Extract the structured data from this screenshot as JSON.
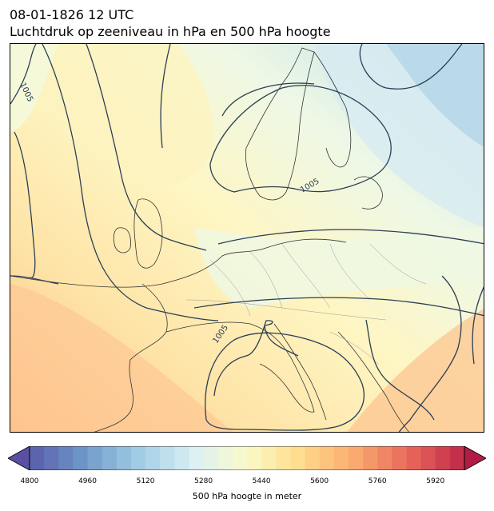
{
  "header": {
    "title_line1": "08-01-1826 12 UTC",
    "title_line2": "Luchtdruk op zeeniveau in hPa en 500 hPa hoogte"
  },
  "map": {
    "region": "Europe",
    "isobar_labels": [
      "1005",
      "1005",
      "1005"
    ],
    "isobar_color": "#2c3e55",
    "coastline_color": "#333333",
    "border_color": "#999999"
  },
  "colorbar": {
    "label": "500 hPa hoogte in meter",
    "min": 4800,
    "max": 6000,
    "step": 40,
    "ticks": [
      "4800",
      "4960",
      "5120",
      "5280",
      "5440",
      "5600",
      "5760",
      "5920"
    ],
    "colormap": "RdYlBu_r",
    "extend": "both"
  }
}
